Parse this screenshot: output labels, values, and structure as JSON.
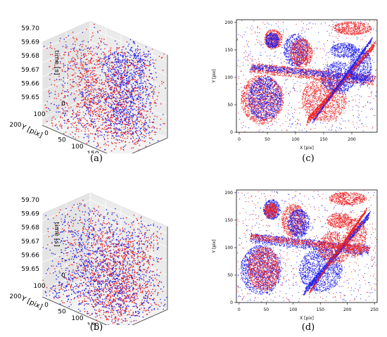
{
  "chart_data": [
    {
      "panel": "(a)",
      "type": "scatter",
      "projection": "3d",
      "xlabel": "X [pix]",
      "ylabel": "Y [pix]",
      "zlabel": "time [s]",
      "xticks": [
        "0",
        "50",
        "100",
        "150",
        "200",
        "250"
      ],
      "yticks": [
        "0",
        "100",
        "200"
      ],
      "zticks": [
        "59.65",
        "59.66",
        "59.67",
        "59.68",
        "59.69",
        "59.70"
      ],
      "xlim": [
        0,
        250
      ],
      "ylim": [
        0,
        200
      ],
      "zlim": [
        59.645,
        59.705
      ],
      "grid": true,
      "series": [
        {
          "color": "#2222ee",
          "description": "positive polarity events, concentrated along a vertical band near X 150-200"
        },
        {
          "color": "#ee2222",
          "description": "negative polarity events, spread throughout"
        }
      ]
    },
    {
      "panel": "(b)",
      "type": "scatter",
      "projection": "3d",
      "xlabel": "X [pix]",
      "ylabel": "Y [pix]",
      "zlabel": "time [s]",
      "xticks": [
        "0",
        "50",
        "100",
        "150",
        "200",
        "250"
      ],
      "yticks": [
        "0",
        "100",
        "200"
      ],
      "zticks": [
        "59.65",
        "59.66",
        "59.67",
        "59.68",
        "59.69",
        "59.70"
      ],
      "xlim": [
        0,
        250
      ],
      "ylim": [
        0,
        200
      ],
      "zlim": [
        59.645,
        59.705
      ],
      "grid": true,
      "series": [
        {
          "color": "#2222ee"
        },
        {
          "color": "#ee2222"
        }
      ]
    },
    {
      "panel": "(c)",
      "type": "scatter",
      "xlabel": "X [pix]",
      "ylabel": "Y [pix]",
      "xticks": [
        "0",
        "50",
        "100",
        "150",
        "200",
        "250"
      ],
      "yticks": [
        "0",
        "50",
        "100",
        "150",
        "200"
      ],
      "xlim": [
        -5,
        245
      ],
      "ylim": [
        0,
        205
      ],
      "series": [
        {
          "color": "#2222ee"
        },
        {
          "color": "#ee2222"
        }
      ]
    },
    {
      "panel": "(d)",
      "type": "scatter",
      "xlabel": "X [pix]",
      "ylabel": "Y [pix]",
      "xticks": [
        "0",
        "50",
        "100",
        "150",
        "200",
        "250"
      ],
      "yticks": [
        "0",
        "50",
        "100",
        "150",
        "200"
      ],
      "xlim": [
        -5,
        255
      ],
      "ylim": [
        0,
        205
      ],
      "series": [
        {
          "color": "#2222ee"
        },
        {
          "color": "#ee2222"
        }
      ]
    }
  ],
  "captions": {
    "a": "(a)",
    "b": "(b)",
    "c": "(c)",
    "d": "(d)"
  }
}
